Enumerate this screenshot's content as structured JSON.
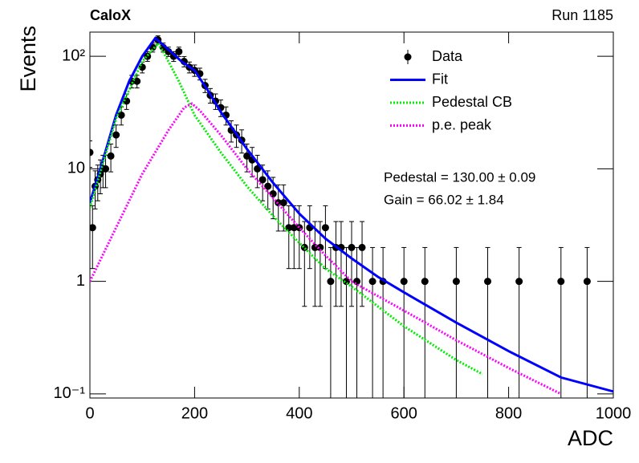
{
  "chart_data": {
    "type": "scatter",
    "title": "CaloX",
    "subtitle": "Run 1185",
    "x_label": "ADC",
    "y_label": "Events",
    "log_y": true,
    "xlim": [
      0,
      1000
    ],
    "ylim": [
      0.092,
      164
    ],
    "xticks": [
      0,
      200,
      400,
      600,
      800,
      1000
    ],
    "yticks": [
      {
        "value": 0.1,
        "label": "10⁻¹"
      },
      1,
      10,
      {
        "value": 100,
        "label": "10²"
      }
    ],
    "legend_position": "upper right",
    "annotations": [
      "Pedestal = 130.00 ± 0.09",
      "Gain = 66.02 ± 1.84"
    ],
    "series": [
      {
        "name": "Data",
        "type": "errorbar",
        "color": "#000000",
        "x": [
          0,
          5,
          10,
          15,
          20,
          25,
          30,
          40,
          50,
          60,
          70,
          80,
          90,
          100,
          110,
          120,
          130,
          140,
          150,
          160,
          170,
          180,
          190,
          200,
          210,
          220,
          230,
          240,
          250,
          260,
          270,
          280,
          290,
          300,
          310,
          320,
          330,
          340,
          350,
          360,
          370,
          380,
          390,
          400,
          410,
          420,
          430,
          440,
          450,
          460,
          470,
          480,
          490,
          500,
          510,
          520,
          540,
          560,
          600,
          640,
          700,
          760,
          820,
          900,
          950
        ],
        "values": [
          14,
          3,
          7,
          8,
          9,
          10,
          10,
          13,
          20,
          30,
          40,
          60,
          60,
          80,
          100,
          120,
          140,
          120,
          110,
          100,
          110,
          90,
          80,
          75,
          70,
          55,
          45,
          40,
          35,
          30,
          22,
          20,
          18,
          13,
          12,
          10,
          8,
          7,
          6,
          5,
          5,
          3,
          3,
          3,
          2,
          3,
          2,
          2,
          3,
          1,
          2,
          2,
          1,
          2,
          1,
          2,
          1,
          1,
          1,
          1,
          1,
          1,
          1,
          1,
          1
        ],
        "errors": [
          3.7,
          1.7,
          2.6,
          2.8,
          3,
          3.2,
          3.2,
          3.6,
          4.5,
          5.5,
          6.3,
          7.7,
          7.7,
          8.9,
          10,
          11,
          11.8,
          11,
          10.5,
          10,
          10.5,
          9.5,
          8.9,
          8.7,
          8.4,
          7.4,
          6.7,
          6.3,
          5.9,
          5.5,
          4.7,
          4.5,
          4.2,
          3.6,
          3.5,
          3.2,
          2.8,
          2.6,
          2.4,
          2.2,
          2.2,
          1.7,
          1.7,
          1.7,
          1.4,
          1.7,
          1.4,
          1.4,
          1.7,
          1,
          1.4,
          1.4,
          1,
          1.4,
          1,
          1.4,
          1,
          1,
          1,
          1,
          1,
          1,
          1,
          1,
          1
        ]
      },
      {
        "name": "Fit",
        "type": "line",
        "color": "#0000ff",
        "x": [
          0,
          25,
          50,
          75,
          100,
          125,
          150,
          175,
          200,
          225,
          250,
          275,
          300,
          350,
          400,
          450,
          500,
          550,
          600,
          700,
          800,
          900,
          1000
        ],
        "values": [
          5,
          12,
          30,
          60,
          100,
          145,
          115,
          90,
          75,
          50,
          32,
          22,
          15,
          7.5,
          4,
          2.4,
          1.6,
          1.1,
          0.8,
          0.43,
          0.24,
          0.14,
          0.105
        ]
      },
      {
        "name": "Pedestal CB",
        "type": "dotted",
        "color": "#00ee00",
        "x": [
          0,
          50,
          100,
          130,
          140,
          170,
          200,
          250,
          300,
          350,
          400,
          450,
          500,
          550,
          600,
          700,
          750
        ],
        "values": [
          4.5,
          28,
          90,
          130,
          110,
          60,
          30,
          14,
          7,
          3.8,
          2.2,
          1.3,
          0.9,
          0.6,
          0.4,
          0.2,
          0.15
        ]
      },
      {
        "name": "p.e. peak",
        "type": "dotted",
        "color": "#ff00ff",
        "x": [
          0,
          50,
          100,
          150,
          180,
          195,
          210,
          250,
          300,
          350,
          400,
          450,
          500,
          600,
          700,
          800,
          900
        ],
        "values": [
          1,
          3,
          9,
          22,
          35,
          38,
          33,
          20,
          10,
          5.5,
          3,
          1.7,
          1,
          0.55,
          0.3,
          0.17,
          0.1
        ]
      }
    ]
  }
}
